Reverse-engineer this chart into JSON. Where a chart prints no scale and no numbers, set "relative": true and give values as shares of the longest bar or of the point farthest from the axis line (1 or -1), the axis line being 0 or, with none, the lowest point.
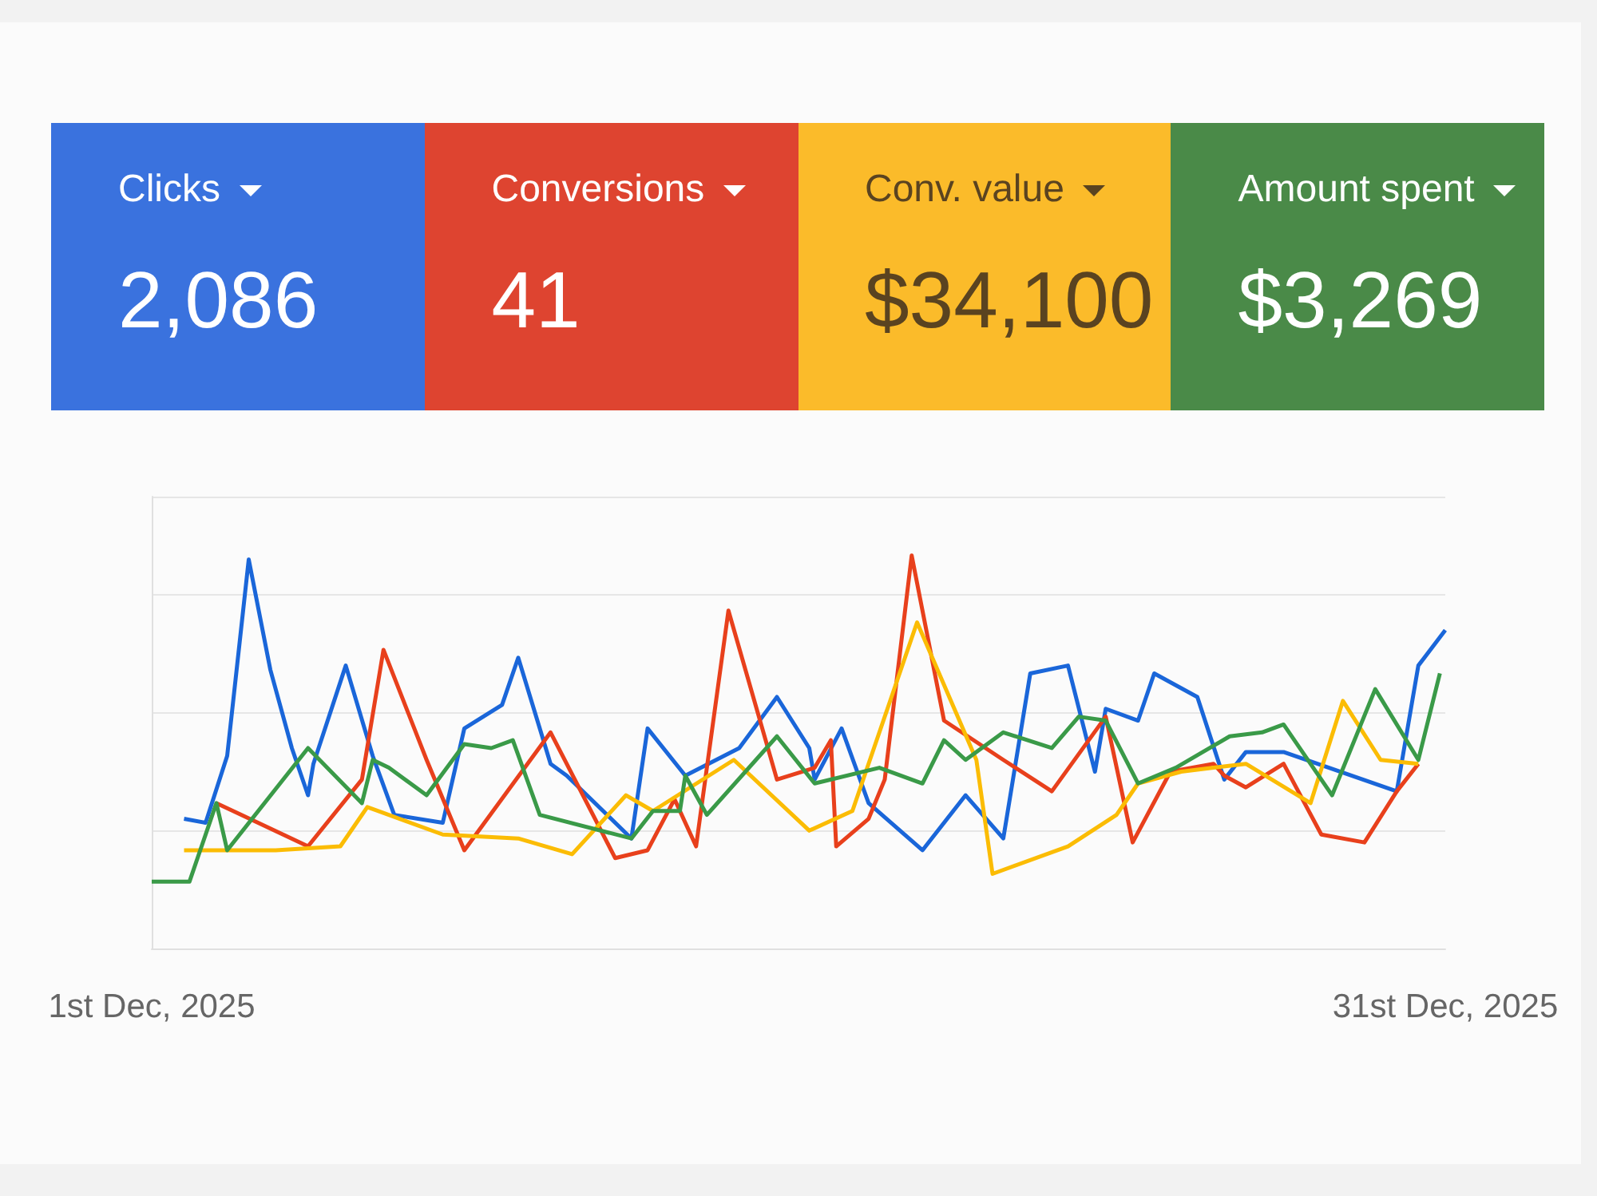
{
  "chart_data": [
    {
      "type": "other",
      "categories": [
        "Clicks",
        "Conversions",
        "Conv. value",
        "Amount spent"
      ],
      "value_labels": [
        "2,086",
        "41",
        "$34,100",
        "$3,269"
      ],
      "colors": [
        "#3a72de",
        "#de4430",
        "#fbbb2a",
        "#4a8a48"
      ]
    },
    {
      "type": "line",
      "relative": true,
      "marker": "none",
      "grid": "y",
      "tick_labels": "x",
      "xlim": [
        "2025-12-01",
        "2025-12-31"
      ],
      "xticks": [
        {
          "value": "2025-12-01",
          "label": "1st Dec, 2025"
        },
        {
          "value": "2025-12-31",
          "label": "31st Dec, 2025"
        }
      ],
      "series": [
        {
          "color": "#1a66d9",
          "x": [
            "2025-12-01T18:00",
            "2025-12-02T06:00",
            "2025-12-02T18:00",
            "2025-12-03T06:00",
            "2025-12-03T18:00",
            "2025-12-04T06:00",
            "2025-12-04T15:00",
            "2025-12-04T18:00",
            "2025-12-05T12:00",
            "2025-12-06T03:00",
            "2025-12-06T15:00",
            "2025-12-07T18:00",
            "2025-12-08T06:00",
            "2025-12-09T03:00",
            "2025-12-09T12:00",
            "2025-12-10T06:00",
            "2025-12-10T15:00",
            "2025-12-12T03:00",
            "2025-12-12T12:00",
            "2025-12-13T09:00",
            "2025-12-14T15:00",
            "2025-12-15T12:00",
            "2025-12-16T06:00",
            "2025-12-16T09:00",
            "2025-12-17T00:00",
            "2025-12-17T15:00",
            "2025-12-18T21:00",
            "2025-12-19T21:00",
            "2025-12-20T18:00",
            "2025-12-21T09:00",
            "2025-12-22T06:00",
            "2025-12-22T21:00",
            "2025-12-23T03:00",
            "2025-12-23T21:00",
            "2025-12-24T06:00",
            "2025-12-25T06:00",
            "2025-12-25T21:00",
            "2025-12-26T09:00",
            "2025-12-27T06:00",
            "2025-12-29T21:00",
            "2025-12-30T09:00",
            "2025-12-31T00:00"
          ],
          "values": [
            0.33,
            0.32,
            0.49,
            0.99,
            0.71,
            0.51,
            0.39,
            0.47,
            0.72,
            0.49,
            0.34,
            0.32,
            0.56,
            0.62,
            0.74,
            0.47,
            0.44,
            0.28,
            0.56,
            0.44,
            0.51,
            0.64,
            0.51,
            0.43,
            0.56,
            0.37,
            0.25,
            0.39,
            0.28,
            0.7,
            0.72,
            0.45,
            0.61,
            0.58,
            0.7,
            0.64,
            0.43,
            0.5,
            0.5,
            0.4,
            0.72,
            0.81
          ]
        },
        {
          "color": "#e8401c",
          "x": [
            "2025-12-02T12:00",
            "2025-12-04T15:00",
            "2025-12-05T21:00",
            "2025-12-06T09:00",
            "2025-12-07T09:00",
            "2025-12-08T06:00",
            "2025-12-10T06:00",
            "2025-12-11T18:00",
            "2025-12-12T12:00",
            "2025-12-13T03:00",
            "2025-12-13T15:00",
            "2025-12-14T09:00",
            "2025-12-15T12:00",
            "2025-12-16T09:00",
            "2025-12-16T18:00",
            "2025-12-16T21:00",
            "2025-12-17T15:00",
            "2025-12-18T00:00",
            "2025-12-18T15:00",
            "2025-12-19T09:00",
            "2025-12-20T18:00",
            "2025-12-21T21:00",
            "2025-12-23T03:00",
            "2025-12-23T18:00",
            "2025-12-24T15:00",
            "2025-12-25T15:00",
            "2025-12-25T21:00",
            "2025-12-26T09:00",
            "2025-12-27T06:00",
            "2025-12-28T03:00",
            "2025-12-29T03:00",
            "2025-12-29T21:00",
            "2025-12-30T09:00"
          ],
          "values": [
            0.37,
            0.26,
            0.43,
            0.76,
            0.48,
            0.25,
            0.55,
            0.23,
            0.25,
            0.38,
            0.26,
            0.86,
            0.43,
            0.46,
            0.53,
            0.26,
            0.33,
            0.43,
            1.0,
            0.58,
            0.48,
            0.4,
            0.59,
            0.27,
            0.45,
            0.47,
            0.44,
            0.41,
            0.47,
            0.29,
            0.27,
            0.4,
            0.47
          ]
        },
        {
          "color": "#fbbc04",
          "x": [
            "2025-12-01T18:00",
            "2025-12-03T21:00",
            "2025-12-05T09:00",
            "2025-12-05T18:00",
            "2025-12-06T00:00",
            "2025-12-07T18:00",
            "2025-12-09T12:00",
            "2025-12-10T18:00",
            "2025-12-12T00:00",
            "2025-12-12T15:00",
            "2025-12-14T12:00",
            "2025-12-16T06:00",
            "2025-12-17T06:00",
            "2025-12-18T18:00",
            "2025-12-20T03:00",
            "2025-12-20T12:00",
            "2025-12-22T06:00",
            "2025-12-23T09:00",
            "2025-12-23T21:00",
            "2025-12-24T21:00",
            "2025-12-26T09:00",
            "2025-12-27T21:00",
            "2025-12-28T15:00",
            "2025-12-29T12:00",
            "2025-12-30T09:00"
          ],
          "values": [
            0.25,
            0.25,
            0.26,
            0.32,
            0.36,
            0.29,
            0.28,
            0.24,
            0.39,
            0.35,
            0.48,
            0.3,
            0.35,
            0.83,
            0.48,
            0.19,
            0.26,
            0.34,
            0.42,
            0.45,
            0.47,
            0.37,
            0.63,
            0.48,
            0.47
          ]
        },
        {
          "color": "#3a9a48",
          "x": [
            "2025-12-01T00:00",
            "2025-12-01T21:00",
            "2025-12-02T12:00",
            "2025-12-02T18:00",
            "2025-12-04T15:00",
            "2025-12-05T21:00",
            "2025-12-06T03:00",
            "2025-12-06T12:00",
            "2025-12-07T09:00",
            "2025-12-08T06:00",
            "2025-12-08T21:00",
            "2025-12-09T09:00",
            "2025-12-10T00:00",
            "2025-12-12T03:00",
            "2025-12-12T15:00",
            "2025-12-13T06:00",
            "2025-12-13T09:00",
            "2025-12-13T21:00",
            "2025-12-15T12:00",
            "2025-12-16T09:00",
            "2025-12-17T21:00",
            "2025-12-18T21:00",
            "2025-12-19T09:00",
            "2025-12-19T21:00",
            "2025-12-20T18:00",
            "2025-12-21T21:00",
            "2025-12-22T12:00",
            "2025-12-23T03:00",
            "2025-12-23T21:00",
            "2025-12-24T18:00",
            "2025-12-26T00:00",
            "2025-12-26T18:00",
            "2025-12-27T06:00",
            "2025-12-28T09:00",
            "2025-12-29T09:00",
            "2025-12-30T09:00",
            "2025-12-30T21:00"
          ],
          "values": [
            0.17,
            0.17,
            0.37,
            0.25,
            0.51,
            0.37,
            0.48,
            0.46,
            0.39,
            0.52,
            0.51,
            0.53,
            0.34,
            0.28,
            0.35,
            0.35,
            0.44,
            0.34,
            0.54,
            0.42,
            0.46,
            0.42,
            0.53,
            0.48,
            0.55,
            0.51,
            0.59,
            0.58,
            0.42,
            0.46,
            0.54,
            0.55,
            0.57,
            0.39,
            0.66,
            0.48,
            0.7
          ]
        }
      ]
    }
  ]
}
